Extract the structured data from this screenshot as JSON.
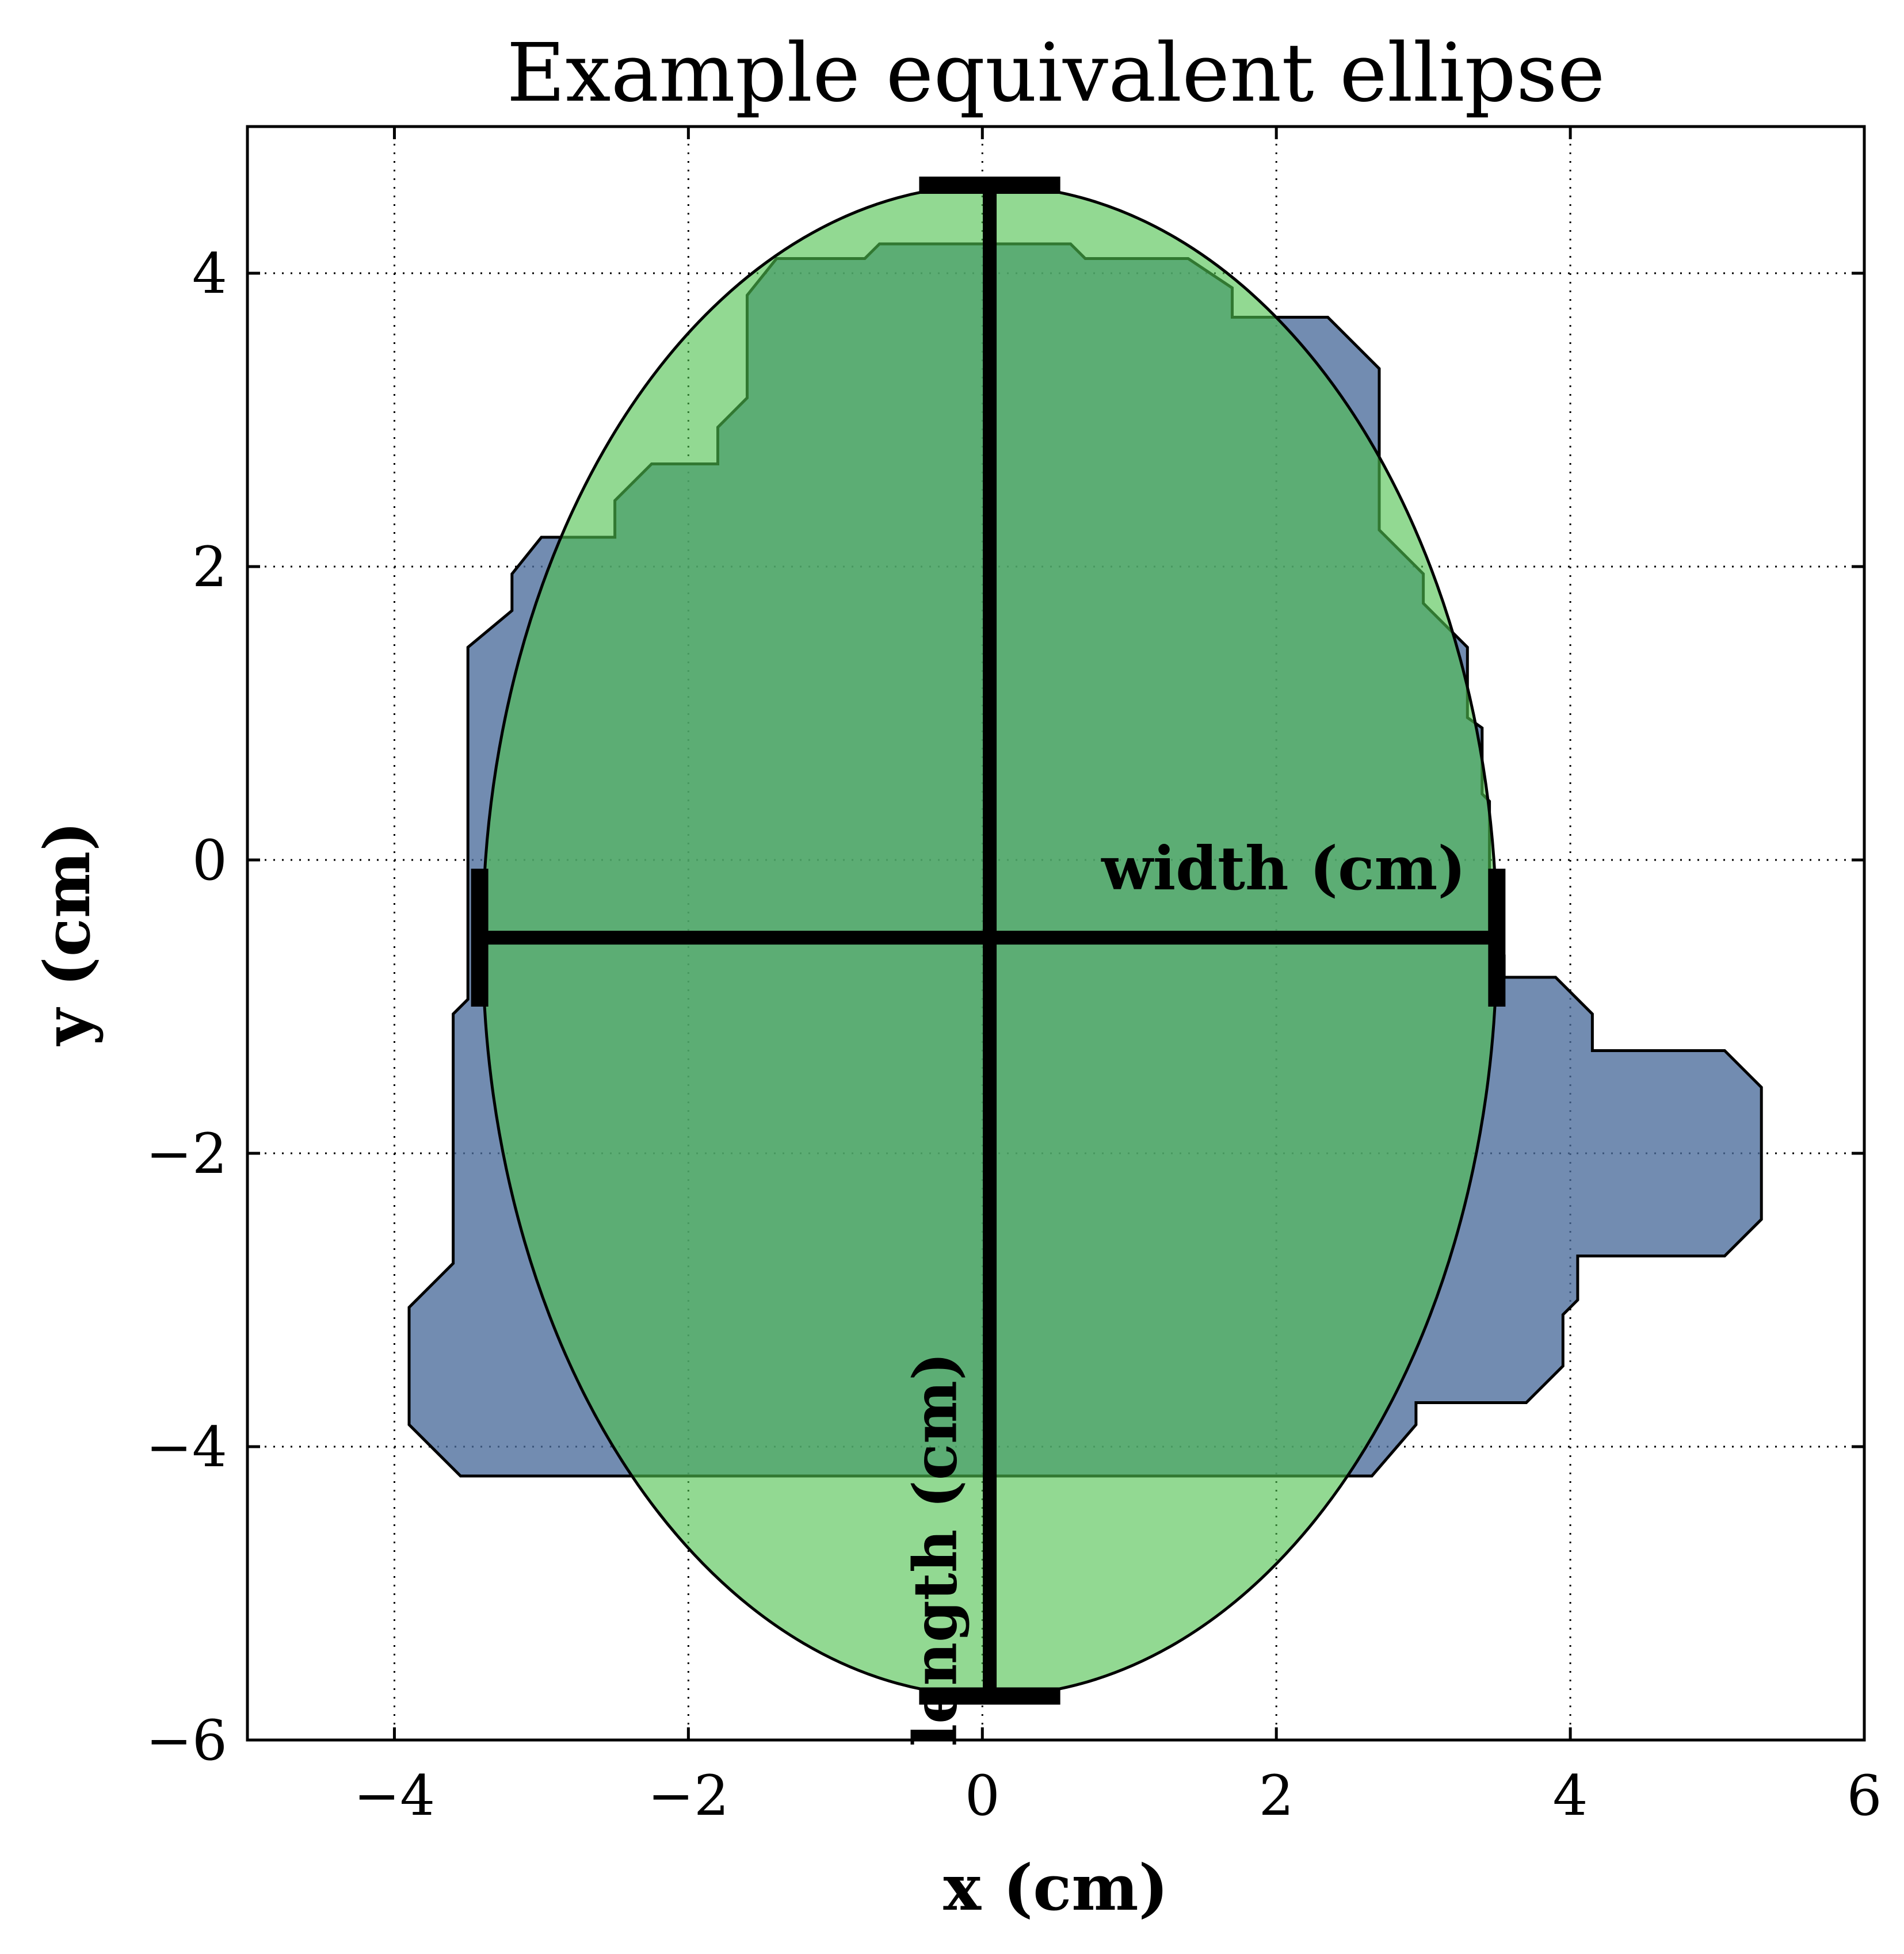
{
  "chart_data": {
    "type": "area",
    "title": "Example equivalent ellipse",
    "xlabel": "x (cm)",
    "ylabel": "y (cm)",
    "xlim": [
      -5,
      6
    ],
    "ylim": [
      -6,
      5
    ],
    "xticks": [
      -4,
      -2,
      0,
      2,
      4,
      6
    ],
    "yticks": [
      -6,
      -4,
      -2,
      0,
      2,
      4
    ],
    "xtick_labels": [
      "−4",
      "−2",
      "0",
      "2",
      "4",
      "6"
    ],
    "ytick_labels": [
      "−6",
      "−4",
      "−2",
      "0",
      "2",
      "4"
    ],
    "grid": true,
    "grid_style": "dotted",
    "colors": {
      "region_fill": "#4a6c9b",
      "ellipse_fill": "#4fc14f",
      "outline": "#000000",
      "axis_lines": "#000000"
    },
    "region_polygon": [
      [
        -3.0,
        2.2
      ],
      [
        -2.5,
        2.2
      ],
      [
        -2.5,
        2.45
      ],
      [
        -2.25,
        2.7
      ],
      [
        -1.8,
        2.7
      ],
      [
        -1.8,
        2.95
      ],
      [
        -1.6,
        3.15
      ],
      [
        -1.6,
        3.85
      ],
      [
        -1.4,
        4.1
      ],
      [
        -0.8,
        4.1
      ],
      [
        -0.7,
        4.2
      ],
      [
        0.6,
        4.2
      ],
      [
        0.7,
        4.1
      ],
      [
        1.4,
        4.1
      ],
      [
        1.7,
        3.9
      ],
      [
        1.7,
        3.7
      ],
      [
        2.35,
        3.7
      ],
      [
        2.7,
        3.35
      ],
      [
        2.7,
        2.25
      ],
      [
        3.0,
        1.95
      ],
      [
        3.0,
        1.75
      ],
      [
        3.3,
        1.45
      ],
      [
        3.3,
        0.97
      ],
      [
        3.4,
        0.9
      ],
      [
        3.4,
        0.45
      ],
      [
        3.45,
        0.4
      ],
      [
        3.45,
        -0.55
      ],
      [
        3.55,
        -0.65
      ],
      [
        3.55,
        -0.8
      ],
      [
        3.9,
        -0.8
      ],
      [
        4.15,
        -1.05
      ],
      [
        4.15,
        -1.3
      ],
      [
        5.05,
        -1.3
      ],
      [
        5.3,
        -1.55
      ],
      [
        5.3,
        -2.45
      ],
      [
        5.05,
        -2.7
      ],
      [
        4.05,
        -2.7
      ],
      [
        4.05,
        -3.0
      ],
      [
        3.95,
        -3.1
      ],
      [
        3.95,
        -3.45
      ],
      [
        3.7,
        -3.7
      ],
      [
        2.95,
        -3.7
      ],
      [
        2.95,
        -3.85
      ],
      [
        2.65,
        -4.2
      ],
      [
        -3.55,
        -4.2
      ],
      [
        -3.9,
        -3.85
      ],
      [
        -3.9,
        -3.05
      ],
      [
        -3.6,
        -2.75
      ],
      [
        -3.6,
        -1.05
      ],
      [
        -3.5,
        -0.95
      ],
      [
        -3.5,
        1.45
      ],
      [
        -3.2,
        1.7
      ],
      [
        -3.2,
        1.95
      ]
    ],
    "ellipse": {
      "center": [
        0.05,
        -0.55
      ],
      "semi_axis_x": 3.45,
      "semi_axis_y": 5.15
    },
    "length_line": {
      "x": 0.05,
      "y_from": -5.7,
      "y_to": 4.6,
      "cap_half_width": 0.48,
      "label": "length (cm)",
      "label_position": [
        -0.18,
        -4.7
      ]
    },
    "width_line": {
      "y": -0.53,
      "x_from": -3.42,
      "x_to": 3.5,
      "cap_half_height": 0.47,
      "label": "width (cm)",
      "label_position": [
        2.05,
        -0.2
      ]
    }
  }
}
